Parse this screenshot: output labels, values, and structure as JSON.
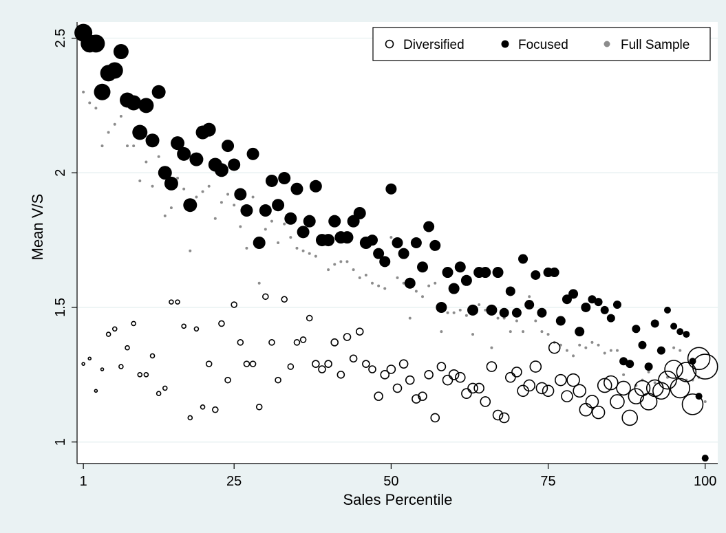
{
  "chart_data": {
    "type": "scatter",
    "title": "",
    "xlabel": "Sales Percentile",
    "ylabel": "Mean V/S",
    "xlim": [
      0,
      102
    ],
    "ylim": [
      0.92,
      2.56
    ],
    "xticks": [
      1,
      25,
      50,
      75,
      100
    ],
    "yticks": [
      1,
      1.5,
      2,
      2.5
    ],
    "ytick_labels": [
      "1",
      "1.5",
      "2",
      "2.5"
    ],
    "grid": "horizontal",
    "legend_position": "top-right",
    "colors": {
      "background": "#eaf2f3",
      "plot": "#ffffff",
      "grid": "#eaf2f3",
      "focused": "#000000",
      "full": "#8c8c8c",
      "diversified": "#000000"
    },
    "series": [
      {
        "name": "Diversified",
        "marker": "hollow-circle",
        "x": [
          1,
          2,
          3,
          4,
          5,
          6,
          7,
          8,
          9,
          10,
          11,
          12,
          13,
          14,
          15,
          16,
          17,
          18,
          19,
          20,
          21,
          22,
          23,
          24,
          25,
          26,
          27,
          28,
          29,
          30,
          31,
          32,
          33,
          34,
          35,
          36,
          37,
          38,
          39,
          40,
          41,
          42,
          43,
          44,
          45,
          46,
          47,
          48,
          49,
          50,
          51,
          52,
          53,
          54,
          55,
          56,
          57,
          58,
          59,
          60,
          61,
          62,
          63,
          64,
          65,
          66,
          67,
          68,
          69,
          70,
          71,
          72,
          73,
          74,
          75,
          76,
          77,
          78,
          79,
          80,
          81,
          82,
          83,
          84,
          85,
          86,
          87,
          88,
          89,
          90,
          91,
          92,
          93,
          94,
          95,
          96,
          97,
          98,
          99,
          100
        ],
        "y": [
          1.29,
          1.31,
          1.19,
          1.27,
          1.4,
          1.42,
          1.28,
          1.35,
          1.44,
          1.25,
          1.25,
          1.32,
          1.18,
          1.2,
          1.52,
          1.52,
          1.43,
          1.09,
          1.42,
          1.13,
          1.29,
          1.12,
          1.44,
          1.23,
          1.51,
          1.37,
          1.29,
          1.29,
          1.13,
          1.54,
          1.37,
          1.23,
          1.53,
          1.28,
          1.37,
          1.38,
          1.46,
          1.29,
          1.27,
          1.29,
          1.37,
          1.25,
          1.39,
          1.31,
          1.41,
          1.29,
          1.27,
          1.17,
          1.25,
          1.27,
          1.2,
          1.29,
          1.23,
          1.16,
          1.17,
          1.25,
          1.09,
          1.28,
          1.23,
          1.25,
          1.24,
          1.18,
          1.2,
          1.2,
          1.15,
          1.28,
          1.1,
          1.09,
          1.24,
          1.26,
          1.19,
          1.21,
          1.28,
          1.2,
          1.19,
          1.35,
          1.23,
          1.17,
          1.23,
          1.19,
          1.12,
          1.15,
          1.11,
          1.21,
          1.22,
          1.15,
          1.2,
          1.09,
          1.17,
          1.2,
          1.15,
          1.2,
          1.19,
          1.23,
          1.27,
          1.2,
          1.26,
          1.14,
          1.31,
          1.28
        ],
        "size": [
          2,
          2,
          2,
          2,
          3,
          3,
          3,
          3,
          3,
          3,
          3,
          3,
          3,
          3,
          3,
          3,
          3,
          3,
          3,
          3,
          4,
          4,
          4,
          4,
          4,
          4,
          4,
          4,
          4,
          4,
          4,
          4,
          4,
          4,
          4,
          4,
          4,
          5,
          5,
          5,
          5,
          5,
          5,
          5,
          5,
          5,
          5,
          6,
          6,
          6,
          6,
          6,
          6,
          6,
          6,
          6,
          6,
          6,
          7,
          7,
          7,
          7,
          7,
          7,
          7,
          7,
          7,
          7,
          7,
          7,
          8,
          8,
          8,
          8,
          8,
          8,
          8,
          8,
          9,
          9,
          9,
          9,
          9,
          10,
          10,
          10,
          10,
          11,
          11,
          11,
          12,
          12,
          12,
          13,
          13,
          14,
          14,
          15,
          16,
          18
        ]
      },
      {
        "name": "Focused",
        "marker": "filled-circle",
        "x": [
          1,
          2,
          3,
          4,
          5,
          6,
          7,
          8,
          9,
          10,
          11,
          12,
          13,
          14,
          15,
          16,
          17,
          18,
          19,
          20,
          21,
          22,
          23,
          24,
          25,
          26,
          27,
          28,
          29,
          30,
          31,
          32,
          33,
          34,
          35,
          36,
          37,
          38,
          39,
          40,
          41,
          42,
          43,
          44,
          45,
          46,
          47,
          48,
          49,
          50,
          51,
          52,
          53,
          54,
          55,
          56,
          57,
          58,
          59,
          60,
          61,
          62,
          63,
          64,
          65,
          66,
          67,
          68,
          69,
          70,
          71,
          72,
          73,
          74,
          75,
          76,
          77,
          78,
          79,
          80,
          81,
          82,
          83,
          84,
          85,
          86,
          87,
          88,
          89,
          90,
          91,
          92,
          93,
          94,
          95,
          96,
          97,
          98,
          99,
          100
        ],
        "y": [
          2.52,
          2.48,
          2.48,
          2.3,
          2.37,
          2.38,
          2.45,
          2.27,
          2.26,
          2.15,
          2.25,
          2.12,
          2.3,
          2.0,
          1.96,
          2.11,
          2.07,
          1.88,
          2.05,
          2.15,
          2.16,
          2.03,
          2.01,
          2.1,
          2.03,
          1.92,
          1.86,
          2.07,
          1.74,
          1.86,
          1.97,
          1.88,
          1.98,
          1.83,
          1.94,
          1.78,
          1.82,
          1.95,
          1.75,
          1.75,
          1.82,
          1.76,
          1.76,
          1.82,
          1.85,
          1.74,
          1.75,
          1.7,
          1.67,
          1.94,
          1.74,
          1.7,
          1.59,
          1.74,
          1.65,
          1.8,
          1.73,
          1.5,
          1.63,
          1.57,
          1.65,
          1.6,
          1.49,
          1.63,
          1.63,
          1.49,
          1.63,
          1.48,
          1.56,
          1.48,
          1.68,
          1.51,
          1.62,
          1.48,
          1.63,
          1.63,
          1.45,
          1.53,
          1.55,
          1.41,
          1.5,
          1.53,
          1.52,
          1.49,
          1.46,
          1.51,
          1.3,
          1.29,
          1.42,
          1.36,
          1.28,
          1.44,
          1.34,
          1.49,
          1.43,
          1.41,
          1.4,
          1.3,
          1.17,
          0.94
        ],
        "size": [
          13,
          13,
          13,
          12,
          12,
          12,
          11,
          11,
          11,
          11,
          11,
          10,
          10,
          10,
          10,
          10,
          10,
          10,
          10,
          10,
          10,
          10,
          10,
          9,
          9,
          9,
          9,
          9,
          9,
          9,
          9,
          9,
          9,
          9,
          9,
          9,
          9,
          9,
          9,
          9,
          9,
          9,
          9,
          9,
          9,
          9,
          8,
          8,
          8,
          8,
          8,
          8,
          8,
          8,
          8,
          8,
          8,
          8,
          8,
          8,
          8,
          8,
          8,
          8,
          8,
          8,
          8,
          7,
          7,
          7,
          7,
          7,
          7,
          7,
          7,
          7,
          7,
          7,
          7,
          7,
          7,
          6,
          6,
          6,
          6,
          6,
          6,
          6,
          6,
          6,
          6,
          6,
          6,
          5,
          5,
          5,
          5,
          5,
          5,
          5
        ]
      },
      {
        "name": "Full Sample",
        "marker": "small-dot",
        "x": [
          1,
          2,
          3,
          4,
          5,
          6,
          7,
          8,
          9,
          10,
          11,
          12,
          13,
          14,
          15,
          16,
          17,
          18,
          19,
          20,
          21,
          22,
          23,
          24,
          25,
          26,
          27,
          28,
          29,
          30,
          31,
          32,
          33,
          34,
          35,
          36,
          37,
          38,
          39,
          40,
          41,
          42,
          43,
          44,
          45,
          46,
          47,
          48,
          49,
          50,
          51,
          52,
          53,
          54,
          55,
          56,
          57,
          58,
          59,
          60,
          61,
          62,
          63,
          64,
          65,
          66,
          67,
          68,
          69,
          70,
          71,
          72,
          73,
          74,
          75,
          76,
          77,
          78,
          79,
          80,
          81,
          82,
          83,
          84,
          85,
          86,
          87,
          88,
          89,
          90,
          91,
          92,
          93,
          94,
          95,
          96,
          97,
          98,
          99,
          100
        ],
        "y": [
          2.3,
          2.26,
          2.24,
          2.1,
          2.15,
          2.18,
          2.21,
          2.1,
          2.1,
          1.97,
          2.04,
          1.95,
          2.06,
          1.84,
          1.87,
          1.98,
          1.94,
          1.71,
          1.91,
          1.93,
          1.95,
          1.83,
          1.89,
          1.92,
          1.88,
          1.8,
          1.72,
          1.91,
          1.59,
          1.79,
          1.82,
          1.74,
          1.81,
          1.76,
          1.72,
          1.71,
          1.7,
          1.69,
          1.76,
          1.64,
          1.66,
          1.67,
          1.67,
          1.64,
          1.61,
          1.62,
          1.59,
          1.58,
          1.57,
          1.76,
          1.61,
          1.59,
          1.46,
          1.56,
          1.54,
          1.58,
          1.59,
          1.41,
          1.48,
          1.48,
          1.49,
          1.47,
          1.4,
          1.51,
          1.49,
          1.35,
          1.46,
          1.46,
          1.41,
          1.45,
          1.41,
          1.54,
          1.45,
          1.41,
          1.4,
          1.37,
          1.36,
          1.34,
          1.32,
          1.36,
          1.35,
          1.37,
          1.36,
          1.33,
          1.34,
          1.34,
          1.25,
          1.28,
          1.21,
          1.23,
          1.26,
          1.22,
          1.34,
          1.24,
          1.35,
          1.34,
          1.23,
          1.23,
          1.24,
          1.15
        ],
        "size": [
          2,
          2,
          2,
          2,
          2,
          2,
          2,
          2,
          2,
          2,
          2,
          2,
          2,
          2,
          2,
          2,
          2,
          2,
          2,
          2,
          2,
          2,
          2,
          2,
          2,
          2,
          2,
          2,
          2,
          2,
          2,
          2,
          2,
          2,
          2,
          2,
          2,
          2,
          2,
          2,
          2,
          2,
          2,
          2,
          2,
          2,
          2,
          2,
          2,
          2,
          2,
          2,
          2,
          2,
          2,
          2,
          2,
          2,
          2,
          2,
          2,
          2,
          2,
          2,
          2,
          2,
          2,
          2,
          2,
          2,
          2,
          2,
          2,
          2,
          2,
          2,
          2,
          2,
          2,
          2,
          2,
          2,
          2,
          2,
          2,
          2,
          2,
          2,
          2,
          2,
          2,
          2,
          2,
          2,
          2,
          2,
          2,
          2,
          2,
          2
        ]
      }
    ]
  }
}
